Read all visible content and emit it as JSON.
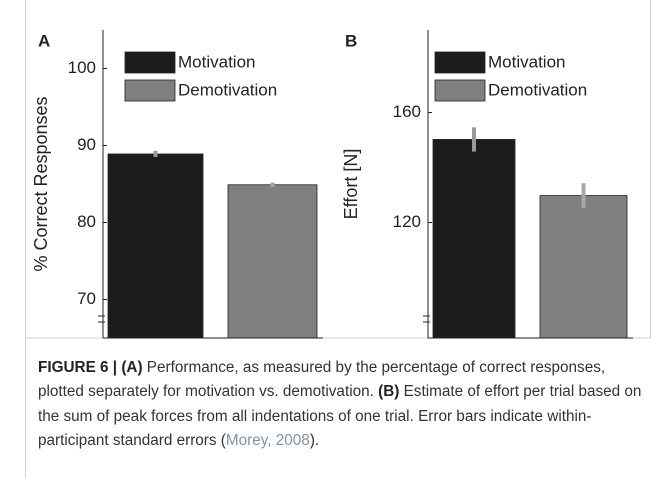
{
  "chart_data": [
    {
      "type": "bar",
      "label": "A",
      "ylabel": "% Correct Responses",
      "ylim": [
        65,
        105
      ],
      "yticks": [
        70,
        80,
        90,
        100
      ],
      "series": [
        {
          "name": "Motivation",
          "color": "#1c1c1c",
          "error_color": "#9a9a9a",
          "values": [
            88.9
          ],
          "errors": [
            0.4
          ]
        },
        {
          "name": "Demotivation",
          "color": "#808080",
          "error_color": "#a8a8a8",
          "values": [
            84.9
          ],
          "errors": [
            0.3
          ]
        }
      ]
    },
    {
      "type": "bar",
      "label": "B",
      "ylabel": "Effort [N]",
      "ylim": [
        78,
        190
      ],
      "yticks": [
        120,
        160
      ],
      "series": [
        {
          "name": "Motivation",
          "color": "#1c1c1c",
          "error_color": "#9a9a9a",
          "values": [
            150.2
          ],
          "errors": [
            4.4
          ]
        },
        {
          "name": "Demotivation",
          "color": "#808080",
          "error_color": "#a8a8a8",
          "values": [
            129.8
          ],
          "errors": [
            4.5
          ]
        }
      ]
    }
  ],
  "caption": {
    "figure": "FIGURE 6 | (A)",
    "text_a": " Performance, as measured by the percentage of correct responses, plotted separately for motivation vs. demotivation. ",
    "label_b": "(B)",
    "text_b": " Estimate of effort per trial based on the sum of peak forces from all indentations of one trial. Error bars indicate within-participant standard errors (",
    "reference": "Morey, 2008",
    "end": ")."
  }
}
